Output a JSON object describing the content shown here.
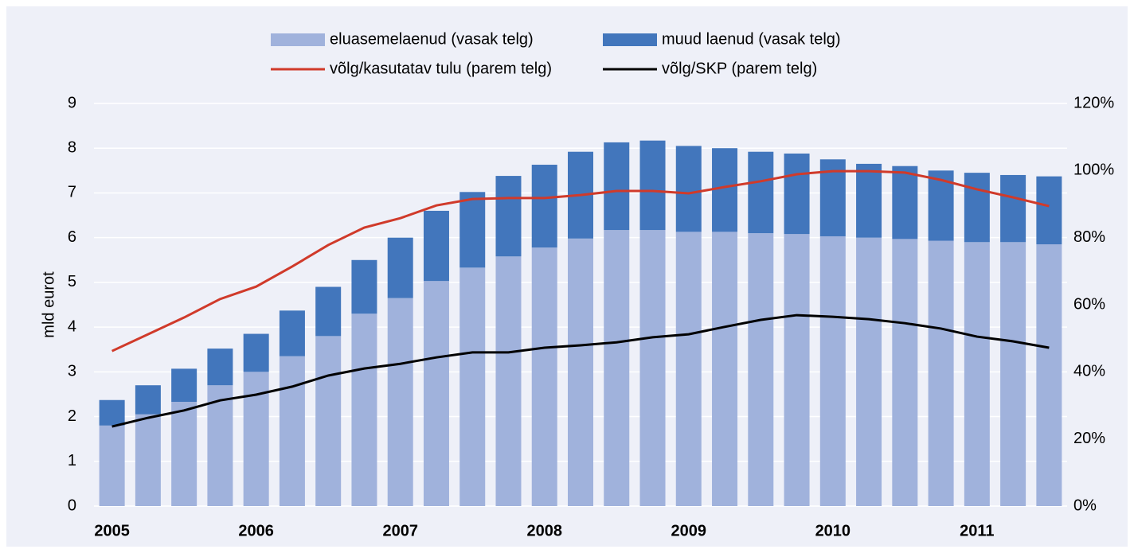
{
  "chart_data": {
    "type": "bar",
    "stacked": true,
    "ylabel": "mld eurot",
    "categories": [
      "2005",
      null,
      null,
      null,
      "2006",
      null,
      null,
      null,
      "2007",
      null,
      null,
      null,
      "2008",
      null,
      null,
      null,
      "2009",
      null,
      null,
      null,
      "2010",
      null,
      null,
      null,
      "2011",
      null,
      null
    ],
    "series": [
      {
        "name": "eluasemelaenud (vasak telg)",
        "type": "bar",
        "color": "#a0b2dc",
        "values": [
          1.8,
          2.05,
          2.33,
          2.7,
          3.0,
          3.35,
          3.8,
          4.3,
          4.65,
          5.03,
          5.33,
          5.58,
          5.78,
          5.98,
          6.17,
          6.17,
          6.13,
          6.13,
          6.1,
          6.08,
          6.03,
          6.0,
          5.97,
          5.93,
          5.9,
          5.9,
          5.85
        ]
      },
      {
        "name": "muud laenud (vasak telg)",
        "type": "bar",
        "color": "#4276bc",
        "values": [
          0.57,
          0.65,
          0.74,
          0.82,
          0.85,
          1.02,
          1.1,
          1.2,
          1.35,
          1.57,
          1.69,
          1.8,
          1.85,
          1.94,
          1.96,
          2.0,
          1.92,
          1.87,
          1.82,
          1.8,
          1.72,
          1.65,
          1.63,
          1.57,
          1.55,
          1.5,
          1.52
        ]
      },
      {
        "name": "võlg/kasutatav tulu (parem telg)",
        "type": "line",
        "axis": "y2",
        "color": "#d03a2a",
        "values": [
          46.2,
          51.2,
          56.2,
          61.7,
          65.4,
          71.4,
          77.8,
          83.0,
          85.8,
          89.6,
          91.5,
          91.8,
          91.8,
          92.7,
          93.9,
          93.9,
          93.2,
          95.1,
          96.8,
          98.9,
          99.8,
          99.8,
          99.4,
          97.2,
          94.4,
          92.0,
          89.4
        ]
      },
      {
        "name": "võlg/SKP (parem telg)",
        "type": "line",
        "axis": "y2",
        "color": "#000000",
        "values": [
          23.7,
          26.3,
          28.5,
          31.5,
          33.2,
          35.6,
          38.9,
          41.0,
          42.4,
          44.3,
          45.8,
          45.8,
          47.2,
          47.9,
          48.8,
          50.3,
          51.2,
          53.4,
          55.5,
          56.9,
          56.4,
          55.7,
          54.5,
          52.9,
          50.5,
          49.1,
          47.2
        ]
      }
    ],
    "ylim": [
      0,
      9
    ],
    "yticks": [
      0,
      1,
      2,
      3,
      4,
      5,
      6,
      7,
      8,
      9
    ],
    "y2lim": [
      0,
      120
    ],
    "y2ticks": [
      {
        "value": 0,
        "label": "0%"
      },
      {
        "value": 20,
        "label": "20%"
      },
      {
        "value": 40,
        "label": "40%"
      },
      {
        "value": 60,
        "label": "60%"
      },
      {
        "value": 80,
        "label": "80%"
      },
      {
        "value": 100,
        "label": "100%"
      },
      {
        "value": 120,
        "label": "120%"
      }
    ],
    "grid": true,
    "legend": "top"
  }
}
